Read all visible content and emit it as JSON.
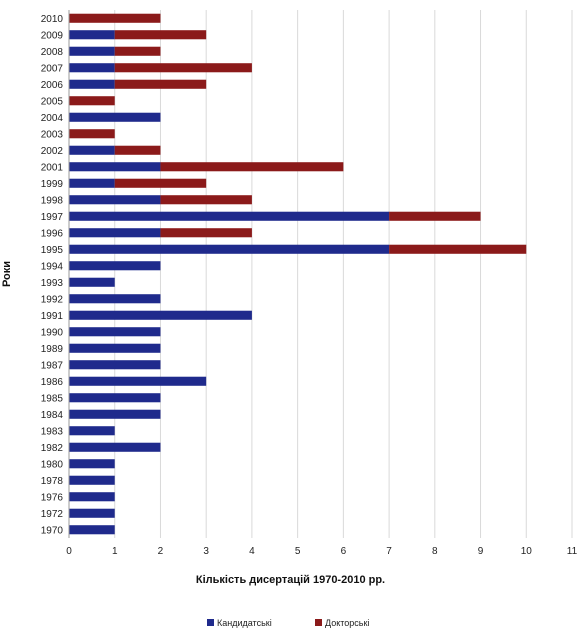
{
  "chart_data": {
    "type": "bar",
    "orientation": "horizontal",
    "stacked": true,
    "title": "",
    "xlabel": "Кількість дисертацій 1970-2010 рр.",
    "ylabel": "Роки",
    "xlim": [
      0,
      11
    ],
    "x_ticks": [
      "0",
      "1",
      "2",
      "3",
      "4",
      "5",
      "6",
      "7",
      "8",
      "9",
      "10",
      "11"
    ],
    "grid": "vertical",
    "legend_position": "bottom",
    "categories": [
      "1970",
      "1972",
      "1976",
      "1978",
      "1980",
      "1982",
      "1983",
      "1984",
      "1985",
      "1986",
      "1987",
      "1989",
      "1990",
      "1991",
      "1992",
      "1993",
      "1994",
      "1995",
      "1996",
      "1997",
      "1998",
      "1999",
      "2001",
      "2002",
      "2003",
      "2004",
      "2005",
      "2006",
      "2007",
      "2008",
      "2009",
      "2010"
    ],
    "series": [
      {
        "name": "Кандидатські",
        "color": "#1f2a8c",
        "values": [
          1,
          1,
          1,
          1,
          1,
          2,
          1,
          2,
          2,
          3,
          2,
          2,
          2,
          4,
          2,
          1,
          2,
          7,
          2,
          7,
          2,
          1,
          2,
          1,
          0,
          2,
          0,
          1,
          1,
          1,
          1,
          0
        ]
      },
      {
        "name": "Докторські",
        "color": "#8b1a1a",
        "values": [
          0,
          0,
          0,
          0,
          0,
          0,
          0,
          0,
          0,
          0,
          0,
          0,
          0,
          0,
          0,
          0,
          0,
          3,
          2,
          2,
          2,
          2,
          4,
          1,
          1,
          0,
          1,
          2,
          3,
          1,
          2,
          2
        ]
      }
    ]
  }
}
